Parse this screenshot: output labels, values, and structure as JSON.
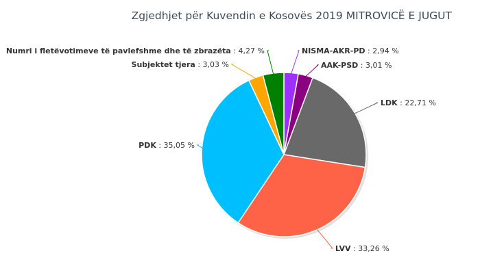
{
  "chart_data": {
    "type": "pie",
    "title": "Zgjedhjet për Kuvendin e Kosovës 2019 MITROVICË E JUGUT",
    "separator": " : ",
    "slices": [
      {
        "name": "NISMA-AKR-PD",
        "value": 2.94,
        "label": "2,94 %",
        "color": "#9b30ff"
      },
      {
        "name": "AAK-PSD",
        "value": 3.01,
        "label": "3,01 %",
        "color": "#8b0080"
      },
      {
        "name": "LDK",
        "value": 22.71,
        "label": "22,71 %",
        "color": "#696969"
      },
      {
        "name": "LVV",
        "value": 33.26,
        "label": "33,26 %",
        "color": "#ff6347"
      },
      {
        "name": "PDK",
        "value": 35.05,
        "label": "35,05 %",
        "color": "#00bfff"
      },
      {
        "name": "Subjektet tjera",
        "value": 3.03,
        "label": "3,03 %",
        "color": "#ffa500"
      },
      {
        "name": "Numri i fletëvotimeve të pavlefshme dhe të zbrazëta",
        "value": 4.27,
        "label": "4,27 %",
        "color": "#008000"
      }
    ]
  }
}
